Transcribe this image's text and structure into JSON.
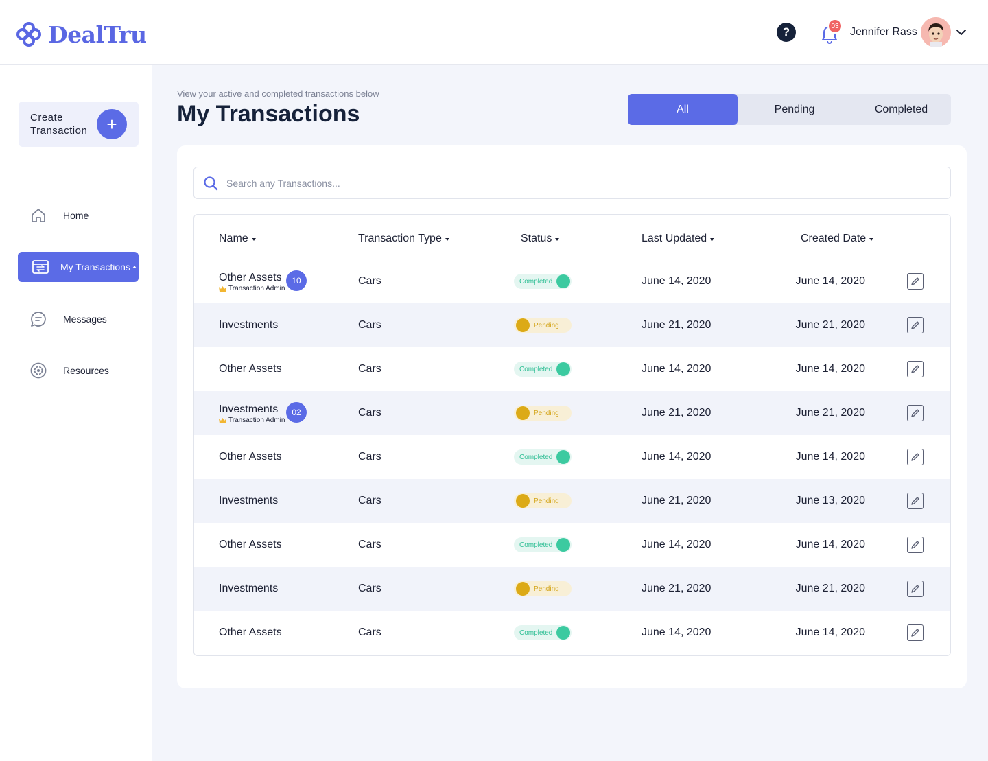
{
  "app": {
    "name": "DealTru"
  },
  "header": {
    "help_label": "?",
    "notifications_count": "03",
    "user_name": "Jennifer Rass"
  },
  "sidebar": {
    "create_label": "Create Transaction",
    "create_plus": "+",
    "items": [
      {
        "label": "Home",
        "icon": "home-icon"
      },
      {
        "label": "My Transactions",
        "icon": "transactions-icon",
        "active": true
      },
      {
        "label": "Messages",
        "icon": "messages-icon"
      },
      {
        "label": "Resources",
        "icon": "resources-icon"
      }
    ]
  },
  "main": {
    "subtitle": "View your active and completed transactions below",
    "title": "My Transactions",
    "filters": [
      "All",
      "Pending",
      "Completed"
    ],
    "active_filter": "All",
    "search_placeholder": "Search any Transactions..."
  },
  "table": {
    "columns": [
      "Name",
      "Transaction Type",
      "Status",
      "Last Updated",
      "Created Date"
    ],
    "rows": [
      {
        "name": "Other Assets",
        "admin": "Transaction Admin",
        "count": "10",
        "type": "Cars",
        "status": "Completed",
        "last_updated": "June 14, 2020",
        "created": "June 14, 2020"
      },
      {
        "name": "Investments",
        "type": "Cars",
        "status": "Pending",
        "last_updated": "June 21, 2020",
        "created": "June 21, 2020"
      },
      {
        "name": "Other Assets",
        "type": "Cars",
        "status": "Completed",
        "last_updated": "June 14, 2020",
        "created": "June 14, 2020"
      },
      {
        "name": "Investments",
        "admin": "Transaction Admin",
        "count": "02",
        "type": "Cars",
        "status": "Pending",
        "last_updated": "June 21, 2020",
        "created": "June 21, 2020"
      },
      {
        "name": "Other Assets",
        "type": "Cars",
        "status": "Completed",
        "last_updated": "June 14, 2020",
        "created": "June 14, 2020"
      },
      {
        "name": "Investments",
        "type": "Cars",
        "status": "Pending",
        "last_updated": "June 21, 2020",
        "created": "June 13, 2020"
      },
      {
        "name": "Other Assets",
        "type": "Cars",
        "status": "Completed",
        "last_updated": "June 14, 2020",
        "created": "June 14, 2020"
      },
      {
        "name": "Investments",
        "type": "Cars",
        "status": "Pending",
        "last_updated": "June 21, 2020",
        "created": "June 21, 2020"
      },
      {
        "name": "Other Assets",
        "type": "Cars",
        "status": "Completed",
        "last_updated": "June 14, 2020",
        "created": "June 14, 2020"
      }
    ]
  },
  "colors": {
    "accent": "#5b6be6",
    "completed": "#3ccaa0",
    "pending": "#dcaa17",
    "badge": "#f06363"
  }
}
